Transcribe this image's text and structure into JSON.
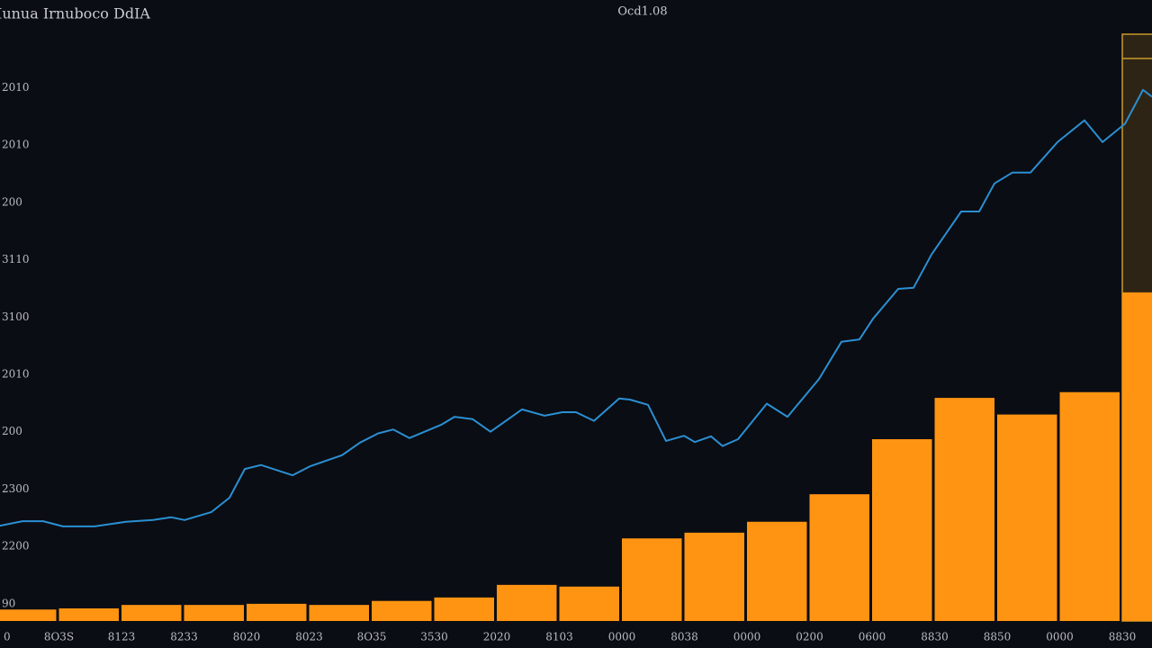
{
  "chart_data": {
    "type": "bar-line",
    "title": "Iunua Irnuboco DdIA",
    "subtitle": "Ocd1.08",
    "background": "#0a0d13",
    "categories": [
      "0",
      "8O3S",
      "8123",
      "8233",
      "8020",
      "8023",
      "8O35",
      "3530",
      "2020",
      "8103",
      "0000",
      "8038",
      "0000",
      "0200",
      "0600",
      "8830",
      "8850",
      "0000",
      "8830"
    ],
    "values": [
      -0.1,
      -0.08,
      -0.02,
      -0.02,
      0.0,
      -0.02,
      0.05,
      0.11,
      0.33,
      0.3,
      1.14,
      1.24,
      1.43,
      1.91,
      2.87,
      3.59,
      3.3,
      3.69,
      5.43
    ],
    "color": "#ff9412",
    "highlight_index": 18,
    "highlight_color": "#c99a2a",
    "line": {
      "color": "#2b8fd2",
      "x": [
        0,
        1.95,
        3.75,
        5.47,
        8.2,
        10.94,
        13.28,
        14.84,
        16.02,
        18.36,
        19.92,
        21.25,
        22.66,
        25.39,
        26.95,
        29.69,
        31.25,
        32.81,
        34.14,
        35.55,
        38.28,
        39.45,
        41.02,
        42.58,
        45.31,
        47.27,
        48.83,
        50,
        51.56,
        53.75,
        54.69,
        56.25,
        57.81,
        59.38,
        60.31,
        61.72,
        62.73,
        64.06,
        66.56,
        68.36,
        71.09,
        73.05,
        74.61,
        75.78,
        77.97,
        79.3,
        80.86,
        83.44,
        85,
        86.33,
        87.89,
        89.45,
        91.8,
        94.14,
        95.7,
        97.66,
        99.22,
        100
      ],
      "values": [
        1.36,
        1.44,
        1.44,
        1.35,
        1.35,
        1.43,
        1.46,
        1.51,
        1.46,
        1.6,
        1.85,
        2.35,
        2.42,
        2.24,
        2.4,
        2.59,
        2.81,
        2.97,
        3.04,
        2.89,
        3.12,
        3.26,
        3.22,
        3.0,
        3.39,
        3.28,
        3.34,
        3.34,
        3.19,
        3.58,
        3.56,
        3.47,
        2.84,
        2.93,
        2.82,
        2.92,
        2.75,
        2.87,
        3.49,
        3.26,
        3.92,
        4.57,
        4.61,
        4.97,
        5.49,
        5.51,
        6.09,
        6.84,
        6.84,
        7.33,
        7.52,
        7.52,
        8.05,
        8.43,
        8.05,
        8.37,
        8.96,
        8.84
      ]
    },
    "xlim": [
      0,
      100
    ],
    "ylim": [
      -0.3,
      9.9
    ],
    "yticks": [
      {
        "value": 0,
        "label": "90"
      },
      {
        "value": 1,
        "label": "2200"
      },
      {
        "value": 2,
        "label": "2300"
      },
      {
        "value": 3,
        "label": "200"
      },
      {
        "value": 4,
        "label": "2010"
      },
      {
        "value": 5,
        "label": "3100"
      },
      {
        "value": 6,
        "label": "3110"
      },
      {
        "value": 7,
        "label": "200"
      },
      {
        "value": 8,
        "label": "2010"
      },
      {
        "value": 9,
        "label": "2010"
      }
    ],
    "grid": false
  }
}
